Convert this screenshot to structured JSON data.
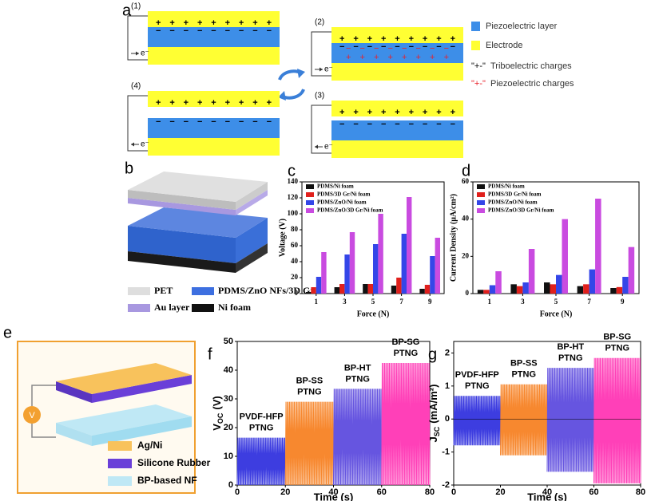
{
  "panels": {
    "a": {
      "label": "a",
      "diagrams": [
        {
          "number": "(1)",
          "electron": "e⁻",
          "top_charges": "+ + + + + + + + +",
          "bottom_charges": "− − − − − − − − −"
        },
        {
          "number": "(2)",
          "electron": "e⁻",
          "top_charges": "+ + + + + + + + +",
          "bottom_charges": "− − − − − − − − −",
          "piezo_top": "− − − − − − − −",
          "piezo_bottom": "+ + + + + + + +"
        },
        {
          "number": "(3)",
          "electron": "e⁻",
          "top_charges": "+ + + + + + + + +",
          "bottom_charges": "− − − − − − − − −"
        },
        {
          "number": "(4)",
          "electron": "e⁻",
          "top_charges": "+ + + + + + + + +",
          "bottom_charges": "− − − − − − − − −"
        }
      ],
      "legend": [
        {
          "text": "Piezoelectric layer",
          "color": "#3d8ee8"
        },
        {
          "text": "Electrode",
          "color": "#ffff33"
        },
        {
          "symbol": "\"+-\"",
          "text": "Triboelectric charges",
          "color": "#000000"
        },
        {
          "symbol": "\"+-\"",
          "text": "Piezoelectric charges",
          "color": "#e8202a"
        }
      ]
    },
    "b": {
      "label": "b",
      "legend": [
        "PET",
        "Au layer",
        "PDMS/ZnO NFs/3D Gr",
        "Ni foam"
      ]
    },
    "e": {
      "label": "e",
      "voltmeter": "V",
      "legend": [
        "Ag/Ni",
        "Silicone Rubber",
        "BP-based NF"
      ]
    }
  },
  "chart_data": [
    {
      "type": "bar",
      "label": "c",
      "xlabel": "Force (N)",
      "ylabel": "Voltage (V)",
      "categories": [
        "1",
        "3",
        "5",
        "7",
        "9"
      ],
      "ylim": [
        0,
        140
      ],
      "yticks": [
        0,
        20,
        40,
        60,
        80,
        100,
        120,
        140
      ],
      "series": [
        {
          "name": "PDMS/Ni foam",
          "color": "#111111",
          "values": [
            2,
            8,
            12,
            10,
            6
          ]
        },
        {
          "name": "PDMS/3D Gr/Ni foam",
          "color": "#e0201c",
          "values": [
            8,
            12,
            12,
            20,
            11
          ]
        },
        {
          "name": "PDMS/ZnO/Ni foam",
          "color": "#3446e8",
          "values": [
            21,
            49,
            62,
            75,
            47
          ]
        },
        {
          "name": "PDMS/ZnO/3D Gr/Ni foam",
          "color": "#c94be0",
          "values": [
            52,
            77,
            100,
            121,
            70
          ]
        }
      ]
    },
    {
      "type": "bar",
      "label": "d",
      "xlabel": "Force (N)",
      "ylabel": "Current Density (μA/cm²)",
      "categories": [
        "1",
        "3",
        "5",
        "7",
        "9"
      ],
      "ylim": [
        0,
        60
      ],
      "yticks": [
        0,
        20,
        40,
        60
      ],
      "series": [
        {
          "name": "PDMS/Ni foam",
          "color": "#111111",
          "values": [
            2,
            5,
            6,
            4,
            3
          ]
        },
        {
          "name": "PDMS/3D Gr/Ni foam",
          "color": "#e0201c",
          "values": [
            2,
            4,
            5,
            5,
            3.5
          ]
        },
        {
          "name": "PDMS/ZnO/Ni foam",
          "color": "#3446e8",
          "values": [
            4.5,
            6,
            10,
            13,
            9
          ]
        },
        {
          "name": "PDMS/ZnO/3D Gr/Ni foam",
          "color": "#c94be0",
          "values": [
            12,
            24,
            40,
            51,
            25
          ]
        }
      ]
    },
    {
      "type": "signal",
      "label": "f",
      "xlabel": "Time (s)",
      "ylabel": {
        "symbol": "V",
        "subscript": "OC",
        "unit": "(V)"
      },
      "xlim": [
        0,
        80
      ],
      "xticks": [
        0,
        20,
        40,
        60,
        80
      ],
      "ylim": [
        0,
        50
      ],
      "yticks": [
        0,
        10,
        20,
        30,
        40,
        50
      ],
      "segments": [
        {
          "label": [
            "PVDF-HFP",
            "PTNG"
          ],
          "color": "#3d3de0",
          "start": 0,
          "end": 20,
          "max": 16.5,
          "min": 0
        },
        {
          "label": [
            "BP-SS",
            "PTNG"
          ],
          "color": "#f7882f",
          "start": 20,
          "end": 40,
          "max": 29,
          "min": 0
        },
        {
          "label": [
            "BP-HT",
            "PTNG"
          ],
          "color": "#6655e0",
          "start": 40,
          "end": 60,
          "max": 33.5,
          "min": 0
        },
        {
          "label": [
            "BP-SG",
            "PTNG"
          ],
          "color": "#ff40b8",
          "start": 60,
          "end": 80,
          "max": 42.5,
          "min": 0
        }
      ]
    },
    {
      "type": "signal",
      "label": "g",
      "xlabel": "Time (s)",
      "ylabel": {
        "symbol": "J",
        "subscript": "SC",
        "unit": "(mA/m²)"
      },
      "xlim": [
        0,
        80
      ],
      "xticks": [
        0,
        20,
        40,
        60,
        80
      ],
      "ylim": [
        -2,
        2.35
      ],
      "yticks": [
        -2,
        -1,
        0,
        1,
        2
      ],
      "segments": [
        {
          "label": [
            "PVDF-HFP",
            "PTNG"
          ],
          "color": "#3d3de0",
          "start": 0,
          "end": 20,
          "max": 0.7,
          "min": -0.8
        },
        {
          "label": [
            "BP-SS",
            "PTNG"
          ],
          "color": "#f7882f",
          "start": 20,
          "end": 40,
          "max": 1.05,
          "min": -1.1
        },
        {
          "label": [
            "BP-HT",
            "PTNG"
          ],
          "color": "#6655e0",
          "start": 40,
          "end": 60,
          "max": 1.55,
          "min": -1.6
        },
        {
          "label": [
            "BP-SG",
            "PTNG"
          ],
          "color": "#ff40b8",
          "start": 60,
          "end": 80,
          "max": 1.85,
          "min": -1.95
        }
      ]
    }
  ]
}
